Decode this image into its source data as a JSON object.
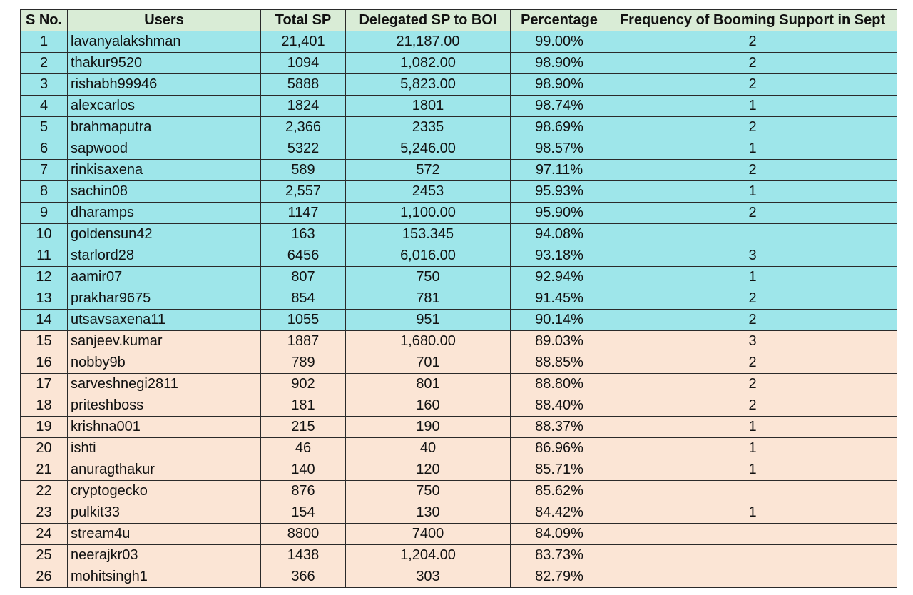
{
  "columns": [
    "S No.",
    "Users",
    "Total SP",
    "Delegated SP to BOI",
    "Percentage",
    "Frequency of Booming Support in Sept"
  ],
  "colors": {
    "header_bg": "#d9ecd6",
    "group_a_bg": "#9ee6ea",
    "group_b_bg": "#fbe5d5",
    "border": "#2a2a2a"
  },
  "rows": [
    {
      "sno": "1",
      "user": "lavanyalakshman",
      "total_sp": "21,401",
      "delegated": "21,187.00",
      "percentage": "99.00%",
      "frequency": "2",
      "group": "a"
    },
    {
      "sno": "2",
      "user": "thakur9520",
      "total_sp": "1094",
      "delegated": "1,082.00",
      "percentage": "98.90%",
      "frequency": "2",
      "group": "a"
    },
    {
      "sno": "3",
      "user": "rishabh99946",
      "total_sp": "5888",
      "delegated": "5,823.00",
      "percentage": "98.90%",
      "frequency": "2",
      "group": "a"
    },
    {
      "sno": "4",
      "user": "alexcarlos",
      "total_sp": "1824",
      "delegated": "1801",
      "percentage": "98.74%",
      "frequency": "1",
      "group": "a"
    },
    {
      "sno": "5",
      "user": "brahmaputra",
      "total_sp": "2,366",
      "delegated": "2335",
      "percentage": "98.69%",
      "frequency": "2",
      "group": "a"
    },
    {
      "sno": "6",
      "user": "sapwood",
      "total_sp": "5322",
      "delegated": "5,246.00",
      "percentage": "98.57%",
      "frequency": "1",
      "group": "a"
    },
    {
      "sno": "7",
      "user": "rinkisaxena",
      "total_sp": "589",
      "delegated": "572",
      "percentage": "97.11%",
      "frequency": "2",
      "group": "a"
    },
    {
      "sno": "8",
      "user": "sachin08",
      "total_sp": "2,557",
      "delegated": "2453",
      "percentage": "95.93%",
      "frequency": "1",
      "group": "a"
    },
    {
      "sno": "9",
      "user": "dharamps",
      "total_sp": "1147",
      "delegated": "1,100.00",
      "percentage": "95.90%",
      "frequency": "2",
      "group": "a"
    },
    {
      "sno": "10",
      "user": "goldensun42",
      "total_sp": "163",
      "delegated": "153.345",
      "percentage": "94.08%",
      "frequency": "",
      "group": "a"
    },
    {
      "sno": "11",
      "user": "starlord28",
      "total_sp": "6456",
      "delegated": "6,016.00",
      "percentage": "93.18%",
      "frequency": "3",
      "group": "a"
    },
    {
      "sno": "12",
      "user": "aamir07",
      "total_sp": "807",
      "delegated": "750",
      "percentage": "92.94%",
      "frequency": "1",
      "group": "a"
    },
    {
      "sno": "13",
      "user": "prakhar9675",
      "total_sp": "854",
      "delegated": "781",
      "percentage": "91.45%",
      "frequency": "2",
      "group": "a"
    },
    {
      "sno": "14",
      "user": "utsavsaxena11",
      "total_sp": "1055",
      "delegated": "951",
      "percentage": "90.14%",
      "frequency": "2",
      "group": "a"
    },
    {
      "sno": "15",
      "user": "sanjeev.kumar",
      "total_sp": "1887",
      "delegated": "1,680.00",
      "percentage": "89.03%",
      "frequency": "3",
      "group": "b"
    },
    {
      "sno": "16",
      "user": "nobby9b",
      "total_sp": "789",
      "delegated": "701",
      "percentage": "88.85%",
      "frequency": "2",
      "group": "b"
    },
    {
      "sno": "17",
      "user": "sarveshnegi2811",
      "total_sp": "902",
      "delegated": "801",
      "percentage": "88.80%",
      "frequency": "2",
      "group": "b"
    },
    {
      "sno": "18",
      "user": "priteshboss",
      "total_sp": "181",
      "delegated": "160",
      "percentage": "88.40%",
      "frequency": "2",
      "group": "b"
    },
    {
      "sno": "19",
      "user": "krishna001",
      "total_sp": "215",
      "delegated": "190",
      "percentage": "88.37%",
      "frequency": "1",
      "group": "b"
    },
    {
      "sno": "20",
      "user": "ishti",
      "total_sp": "46",
      "delegated": "40",
      "percentage": "86.96%",
      "frequency": "1",
      "group": "b"
    },
    {
      "sno": "21",
      "user": "anuragthakur",
      "total_sp": "140",
      "delegated": "120",
      "percentage": "85.71%",
      "frequency": "1",
      "group": "b"
    },
    {
      "sno": "22",
      "user": "cryptogecko",
      "total_sp": "876",
      "delegated": "750",
      "percentage": "85.62%",
      "frequency": "",
      "group": "b"
    },
    {
      "sno": "23",
      "user": "pulkit33",
      "total_sp": "154",
      "delegated": "130",
      "percentage": "84.42%",
      "frequency": "1",
      "group": "b"
    },
    {
      "sno": "24",
      "user": "stream4u",
      "total_sp": "8800",
      "delegated": "7400",
      "percentage": "84.09%",
      "frequency": "",
      "group": "b"
    },
    {
      "sno": "25",
      "user": "neerajkr03",
      "total_sp": "1438",
      "delegated": "1,204.00",
      "percentage": "83.73%",
      "frequency": "",
      "group": "b"
    },
    {
      "sno": "26",
      "user": "mohitsingh1",
      "total_sp": "366",
      "delegated": "303",
      "percentage": "82.79%",
      "frequency": "",
      "group": "b"
    }
  ]
}
